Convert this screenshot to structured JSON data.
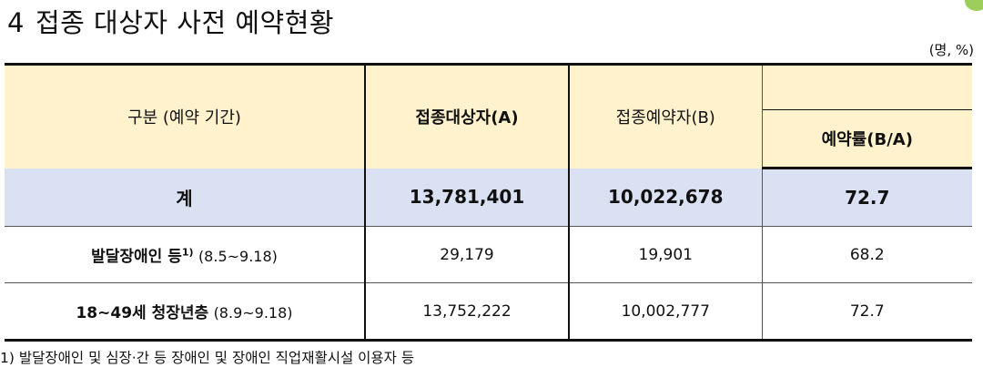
{
  "title": {
    "number": "4",
    "text": "접종 대상자 사전 예약현황"
  },
  "unit": "(명, %)",
  "table": {
    "headers": {
      "category": "구분 (예약 기간)",
      "target": "접종대상자(A)",
      "reserved": "접종예약자(B)",
      "rate": "예약률(B/A)"
    },
    "total": {
      "label": "계",
      "target": "13,781,401",
      "reserved": "10,022,678",
      "rate": "72.7"
    },
    "rows": [
      {
        "label": "발달장애인 등",
        "sup": "1)",
        "period": "(8.5~9.18)",
        "target": "29,179",
        "reserved": "19,901",
        "rate": "68.2"
      },
      {
        "label": "18~49세 청장년층",
        "sup": "",
        "period": "(8.9~9.18)",
        "target": "13,752,222",
        "reserved": "10,002,777",
        "rate": "72.7"
      }
    ]
  },
  "footnote": "1) 발달장애인 및 심장·간 등 장애인 및 장애인 직업재활시설 이용자 등",
  "colors": {
    "header_bg": "#fff2cc",
    "total_bg": "#dae1f3"
  }
}
